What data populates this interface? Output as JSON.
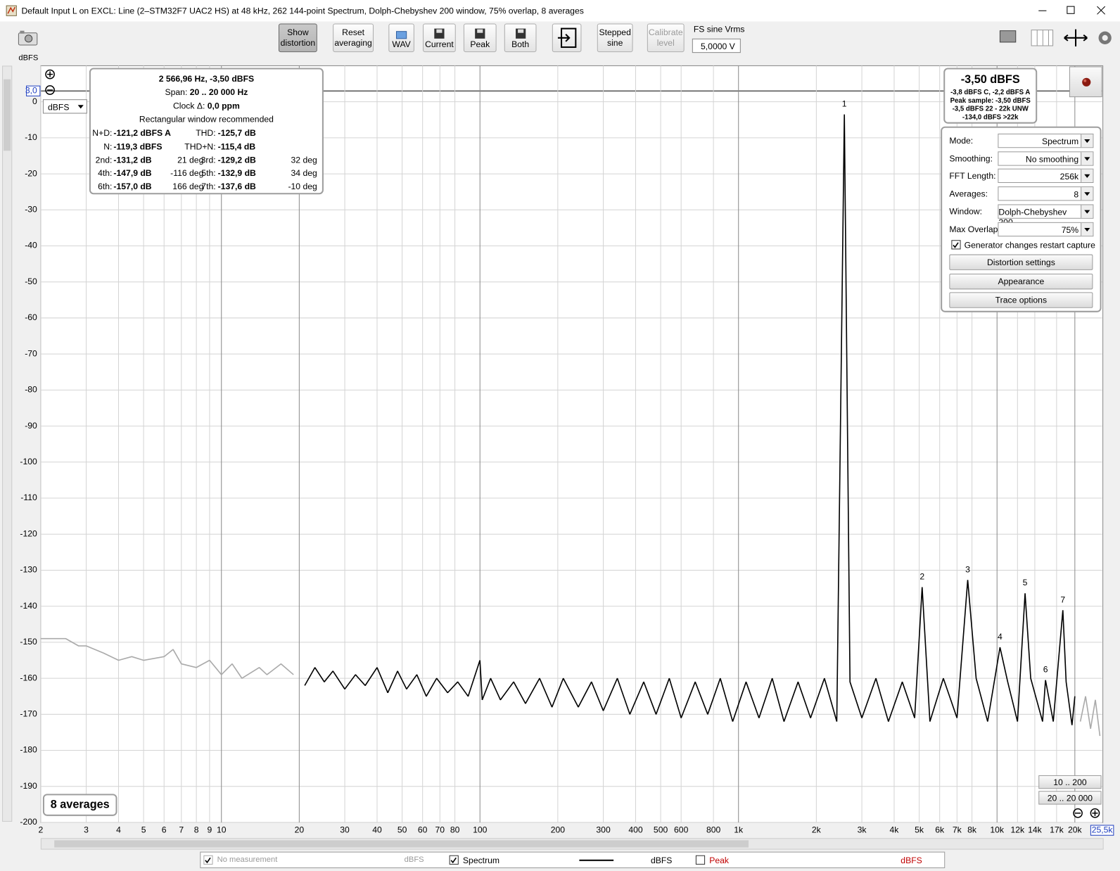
{
  "window": {
    "title": "Default Input L on EXCL: Line (2–STM32F7 UAC2 HS) at 48 kHz, 262 144-point Spectrum, Dolph-Chebyshev 200 window, 75% overlap, 8 averages"
  },
  "toolbar": {
    "show_distortion": "Show distortion",
    "reset_averaging": "Reset averaging",
    "wav": "WAV",
    "current": "Current",
    "peak": "Peak",
    "both": "Both",
    "stepped_sine": "Stepped sine",
    "calibrate_level": "Calibrate level",
    "fs_sine_label": "FS sine Vrms",
    "fs_sine_value": "5,0000 V"
  },
  "unit_label": "dBFS",
  "unit_select": "dBFS",
  "distortion": {
    "header": "2 566,96 Hz, -3,50 dBFS",
    "span_label": "Span:",
    "span": "20 .. 20 000 Hz",
    "clock_label": "Clock Δ:",
    "clock": "0,0 ppm",
    "note": "Rectangular window recommended",
    "rows": [
      [
        {
          "label": "N+D:",
          "value": "-121,2 dBFS A"
        },
        {
          "label": "THD:",
          "value": "-125,7 dB"
        }
      ],
      [
        {
          "label": "N:",
          "value": "-119,3 dBFS"
        },
        {
          "label": "THD+N:",
          "value": "-115,4 dB"
        }
      ],
      [
        {
          "label": "2nd:",
          "value": "-131,2 dB",
          "phase": "21 deg"
        },
        {
          "label": "3rd:",
          "value": "-129,2 dB",
          "phase": "32 deg"
        }
      ],
      [
        {
          "label": "4th:",
          "value": "-147,9 dB",
          "phase": "-116 deg"
        },
        {
          "label": "5th:",
          "value": "-132,9 dB",
          "phase": "34 deg"
        }
      ],
      [
        {
          "label": "6th:",
          "value": "-157,0 dB",
          "phase": "166 deg"
        },
        {
          "label": "7th:",
          "value": "-137,6 dB",
          "phase": "-10 deg"
        }
      ]
    ]
  },
  "level": {
    "main": "-3,50 dBFS",
    "lines": [
      "-3,8 dBFS C, -2,2 dBFS A",
      "Peak sample: -3,50 dBFS",
      "-3,5 dBFS 22 - 22k UNW",
      "-134,0 dBFS >22k"
    ]
  },
  "settings": {
    "fields": [
      {
        "label": "Mode:",
        "value": "Spectrum"
      },
      {
        "label": "Smoothing:",
        "value": "No  smoothing"
      },
      {
        "label": "FFT Length:",
        "value": "256k"
      },
      {
        "label": "Averages:",
        "value": "8"
      },
      {
        "label": "Window:",
        "value": "Dolph-Chebyshev 200"
      },
      {
        "label": "Max Overlap:",
        "value": "75%"
      }
    ],
    "restart_capture": {
      "label": "Generator changes restart capture",
      "checked": true
    },
    "buttons": [
      "Distortion settings",
      "Appearance",
      "Trace options"
    ]
  },
  "averages_badge": "8 averages",
  "range_buttons": [
    "10 .. 200",
    "20 .. 20 000"
  ],
  "legend": [
    {
      "label": "No measurement",
      "unit": "dBFS",
      "checked": true,
      "enabled": false
    },
    {
      "label": "Spectrum",
      "unit": "dBFS",
      "checked": true,
      "enabled": true
    },
    {
      "label": "Peak",
      "unit": "dBFS",
      "checked": false,
      "enabled": true
    }
  ],
  "chart_data": {
    "type": "line",
    "log_x": true,
    "grid": true,
    "span": [
      20,
      20000
    ],
    "out_of_span_color": "#aaaaaa",
    "xlim": [
      2,
      25500
    ],
    "ylim": [
      -200,
      10
    ],
    "xticks": [
      2,
      3,
      4,
      5,
      6,
      7,
      8,
      9,
      10,
      20,
      30,
      40,
      50,
      60,
      70,
      80,
      100,
      200,
      300,
      400,
      500,
      600,
      800,
      {
        "value": 1000,
        "label": "1k"
      },
      {
        "value": 2000,
        "label": "2k"
      },
      {
        "value": 3000,
        "label": "3k"
      },
      {
        "value": 4000,
        "label": "4k"
      },
      {
        "value": 5000,
        "label": "5k"
      },
      {
        "value": 6000,
        "label": "6k"
      },
      {
        "value": 7000,
        "label": "7k"
      },
      {
        "value": 8000,
        "label": "8k"
      },
      {
        "value": 10000,
        "label": "10k"
      },
      {
        "value": 12000,
        "label": "12k"
      },
      {
        "value": 14000,
        "label": "14k"
      },
      {
        "value": 17000,
        "label": "17k"
      },
      {
        "value": 20000,
        "label": "20k"
      },
      {
        "value": 25500,
        "label": "25,5k"
      }
    ],
    "yticks": [
      {
        "value": 3,
        "label": "3,0"
      },
      0,
      -10,
      -20,
      -30,
      -40,
      -50,
      -60,
      -70,
      -80,
      -90,
      -100,
      -110,
      -120,
      -130,
      -140,
      -150,
      -160,
      -170,
      -180,
      -190,
      -200
    ],
    "x": [
      2,
      2.5,
      2.8,
      3,
      3.5,
      4,
      4.5,
      5,
      6,
      6.5,
      7,
      8,
      9,
      10,
      11,
      12,
      14,
      15,
      17,
      19,
      21,
      23,
      25,
      27,
      30,
      33,
      36,
      40,
      44,
      48,
      52,
      57,
      62,
      68,
      75,
      82,
      90,
      100,
      102,
      110,
      120,
      135,
      150,
      170,
      190,
      210,
      240,
      270,
      300,
      340,
      380,
      430,
      480,
      540,
      600,
      680,
      760,
      850,
      950,
      1070,
      1200,
      1350,
      1500,
      1700,
      1900,
      2150,
      2400,
      2566.96,
      2700,
      3000,
      3400,
      3800,
      4300,
      4800,
      5133.9,
      5500,
      6200,
      7000,
      7700.9,
      8300,
      9200,
      10267.8,
      11000,
      12000,
      12834.8,
      13500,
      15000,
      15401.8,
      16500,
      17968.7,
      18500,
      19500,
      20000,
      21000,
      22000,
      23000,
      24000,
      25000
    ],
    "series": [
      {
        "name": "Spectrum",
        "color": "#000000",
        "values": [
          -149,
          -149,
          -151,
          -151,
          -153,
          -155,
          -154,
          -155,
          -154,
          -152,
          -156,
          -157,
          -155,
          -159,
          -156,
          -160,
          -157,
          -159,
          -156,
          -159,
          -162,
          -157,
          -161,
          -158,
          -163,
          -159,
          -162,
          -157,
          -164,
          -158,
          -163,
          -159,
          -165,
          -160,
          -164,
          -161,
          -165,
          -155,
          -166,
          -160,
          -166,
          -161,
          -167,
          -160,
          -168,
          -160,
          -168,
          -161,
          -169,
          -160,
          -170,
          -161,
          -170,
          -160,
          -171,
          -161,
          -170,
          -160,
          -172,
          -161,
          -171,
          -160,
          -172,
          -161,
          -171,
          -160,
          -172,
          -3.5,
          -161,
          -171,
          -160,
          -172,
          -161,
          -171,
          -134.7,
          -172,
          -160,
          -171,
          -132.7,
          -160,
          -172,
          -151.4,
          -161,
          -172,
          -136.4,
          -160,
          -172,
          -160.5,
          -172,
          -141.1,
          -161,
          -173,
          -165,
          -172,
          -165,
          -174,
          -166,
          -176
        ]
      }
    ],
    "harmonic_labels": [
      {
        "label": "1",
        "x": 2566.96,
        "y": -3.5
      },
      {
        "label": "2",
        "x": 5133.9,
        "y": -134.7
      },
      {
        "label": "3",
        "x": 7700.9,
        "y": -132.7
      },
      {
        "label": "4",
        "x": 10267.8,
        "y": -151.4
      },
      {
        "label": "5",
        "x": 12834.8,
        "y": -136.4
      },
      {
        "label": "6",
        "x": 15401.8,
        "y": -160.5
      },
      {
        "label": "7",
        "x": 17968.7,
        "y": -141.1
      }
    ]
  }
}
